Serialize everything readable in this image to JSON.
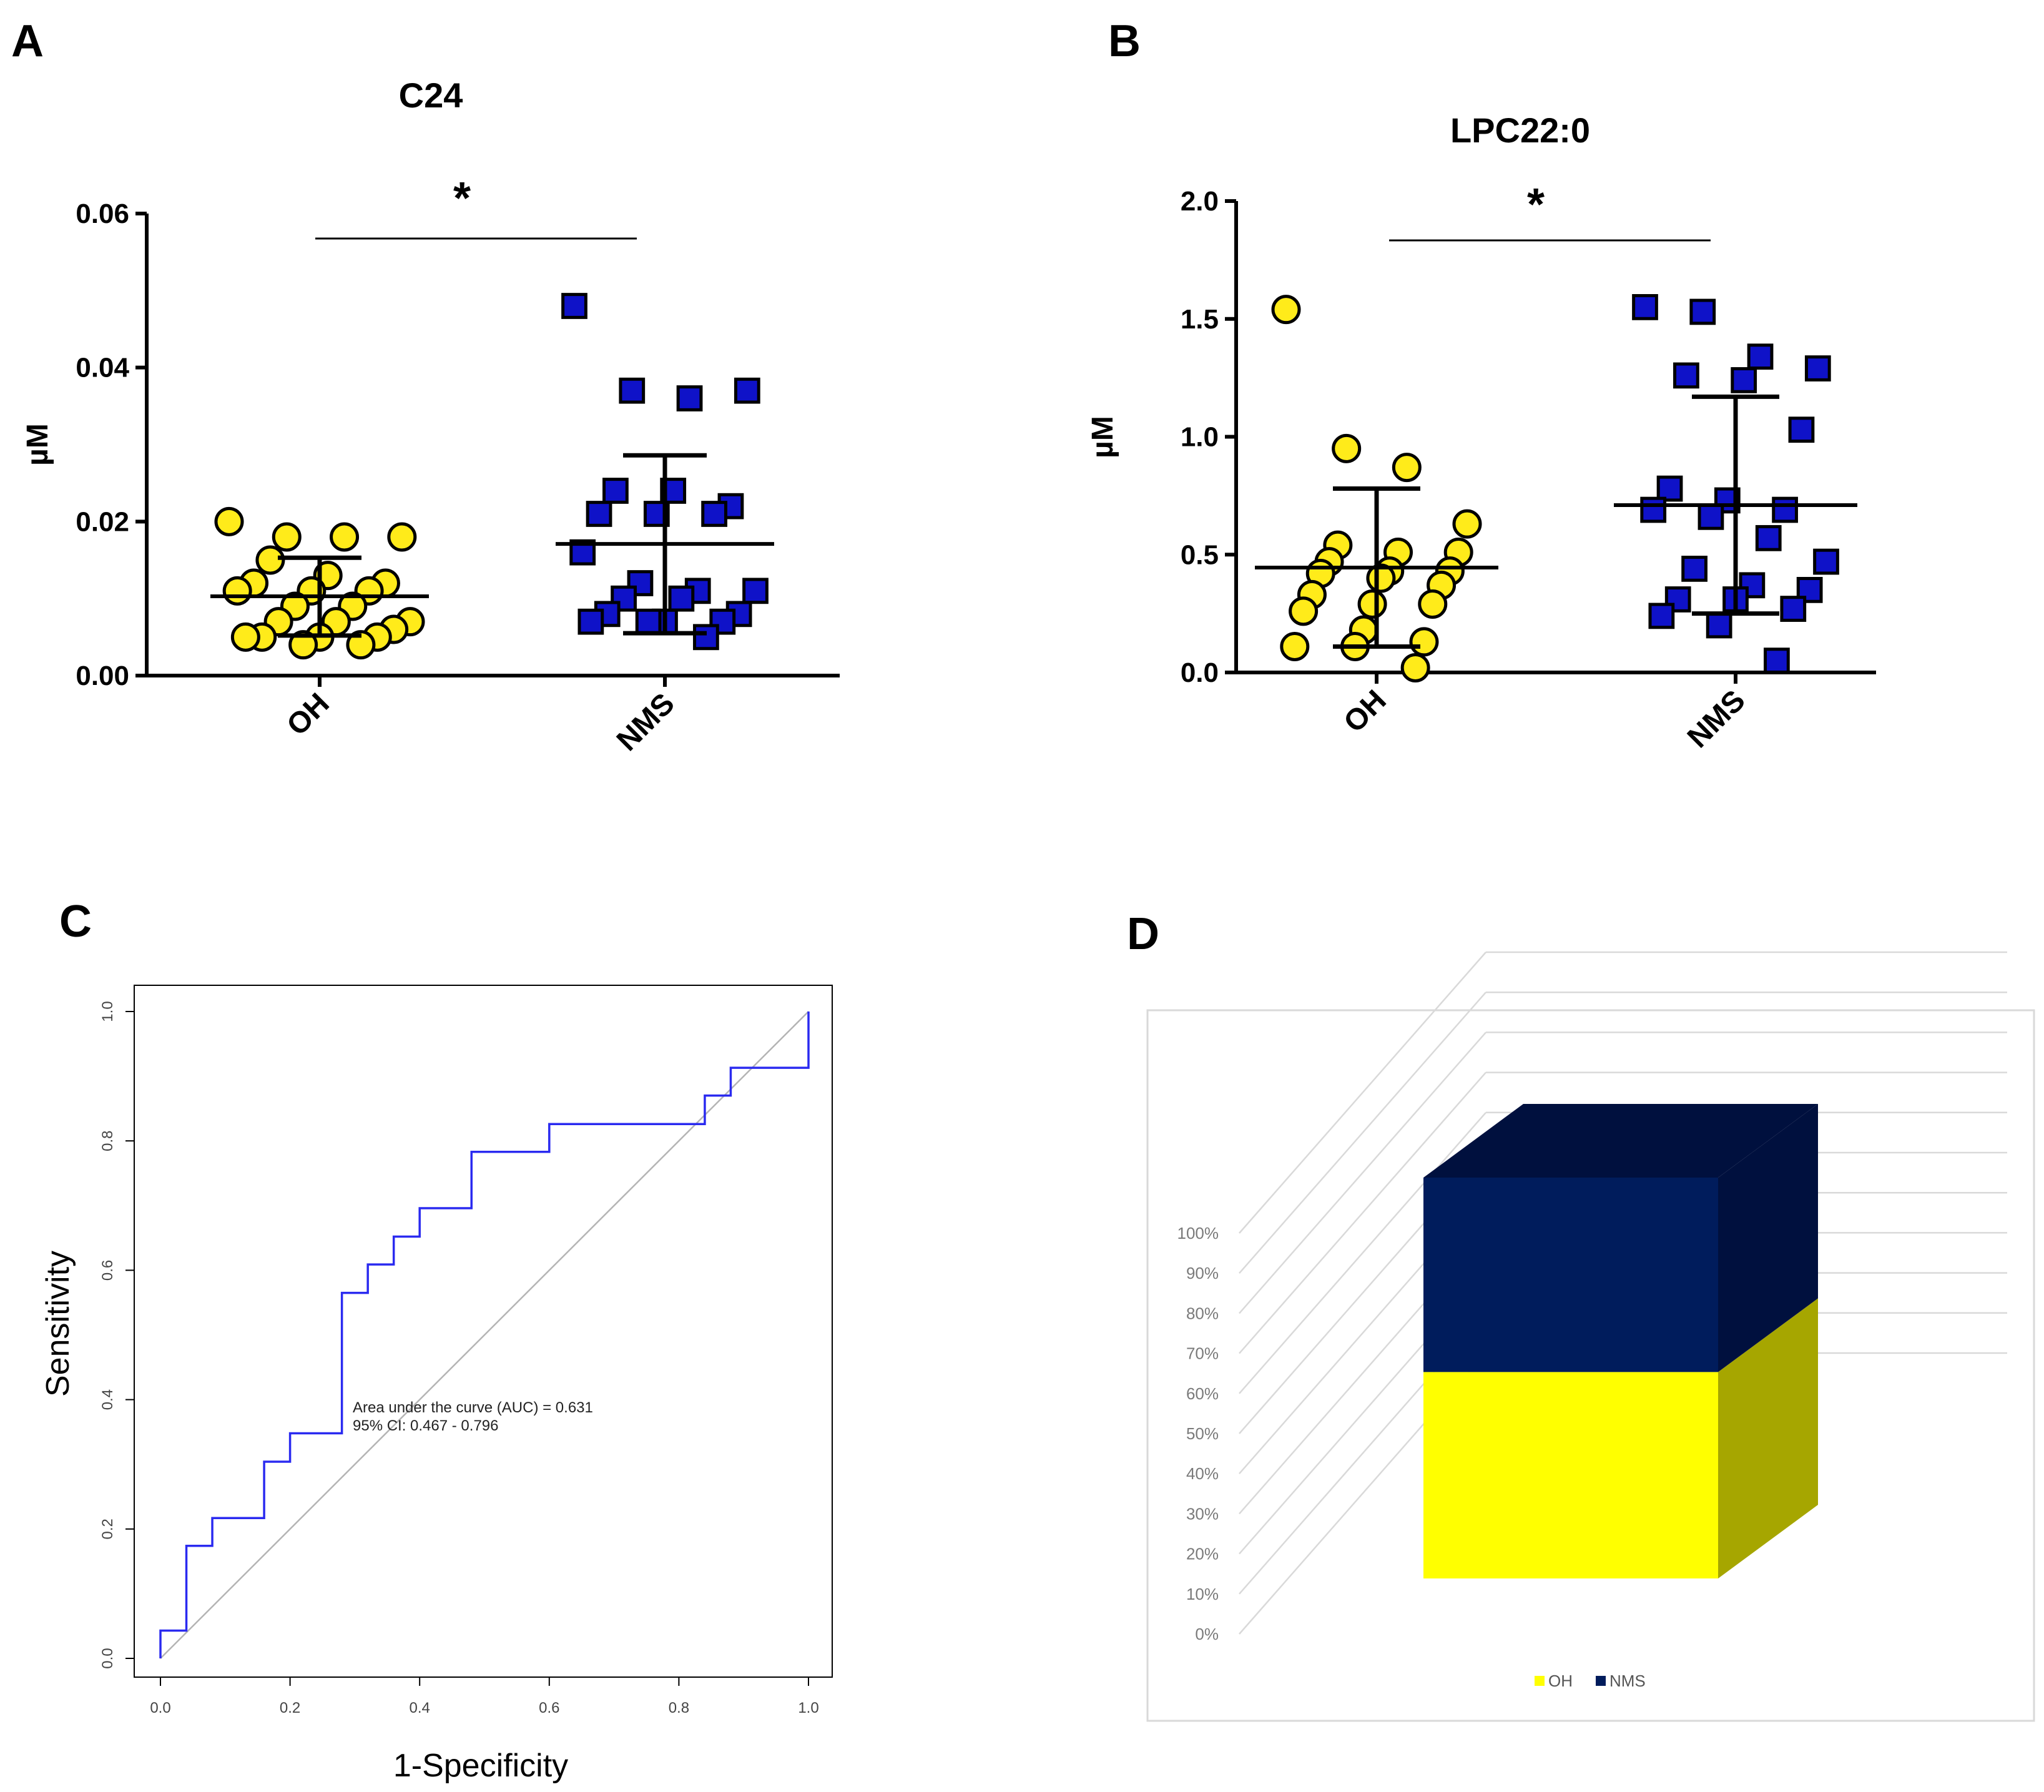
{
  "panels": [
    {
      "letter": "A",
      "title": "C24",
      "significance": "*",
      "ylabel": "µM",
      "yticks": [
        "0.06",
        "0.04",
        "0.02",
        "0.00"
      ],
      "categories": [
        "OH",
        "NMS"
      ]
    },
    {
      "letter": "B",
      "title": "LPC22:0",
      "significance": "*",
      "ylabel": "µM",
      "yticks": [
        "2.0",
        "1.5",
        "1.0",
        "0.5",
        "0.0"
      ],
      "categories": [
        "OH",
        "NMS"
      ]
    },
    {
      "letter": "C",
      "xlabel": "1-Specificity",
      "ylabel": "Sensitivity",
      "xticks": [
        "0.0",
        "0.2",
        "0.4",
        "0.6",
        "0.8",
        "1.0"
      ],
      "yticks": [
        "0.0",
        "0.2",
        "0.4",
        "0.6",
        "0.8",
        "1.0"
      ],
      "annotation_line1": "Area under the curve (AUC) = 0.631",
      "annotation_line2": "95% CI: 0.467 - 0.796"
    },
    {
      "letter": "D",
      "yticks": [
        "100%",
        "90%",
        "80%",
        "70%",
        "60%",
        "50%",
        "40%",
        "30%",
        "20%",
        "10%",
        "0%"
      ],
      "legend": [
        "OH",
        "NMS"
      ]
    }
  ],
  "colors": {
    "oh_yellow": "#ffeb1a",
    "nms_blue": "#0f12c8",
    "roc_line": "#2a2af0",
    "bar_yellow": "#ffff00",
    "bar_yellow_side": "#a6a600",
    "bar_navy": "#001c5c",
    "bar_navy_side": "#00103e"
  },
  "chart_data": [
    {
      "type": "scatter",
      "title": "C24",
      "ylabel": "µM",
      "ylim": [
        0,
        0.06
      ],
      "categories": [
        "OH",
        "NMS"
      ],
      "series": [
        {
          "name": "OH",
          "values": [
            0.02,
            0.018,
            0.018,
            0.018,
            0.015,
            0.013,
            0.012,
            0.012,
            0.011,
            0.011,
            0.011,
            0.009,
            0.009,
            0.007,
            0.007,
            0.007,
            0.006,
            0.005,
            0.005,
            0.005,
            0.005,
            0.004,
            0.004
          ],
          "mean": 0.0103,
          "sd_low": 0.0052,
          "sd_high": 0.0153
        },
        {
          "name": "NMS",
          "values": [
            0.048,
            0.037,
            0.036,
            0.037,
            0.024,
            0.024,
            0.022,
            0.021,
            0.021,
            0.021,
            0.016,
            0.012,
            0.011,
            0.011,
            0.01,
            0.01,
            0.008,
            0.008,
            0.007,
            0.007,
            0.007,
            0.007,
            0.005
          ],
          "mean": 0.0171,
          "sd_low": 0.0055,
          "sd_high": 0.0286
        }
      ]
    },
    {
      "type": "scatter",
      "title": "LPC22:0",
      "ylabel": "µM",
      "ylim": [
        0,
        2.0
      ],
      "categories": [
        "OH",
        "NMS"
      ],
      "series": [
        {
          "name": "OH",
          "values": [
            1.54,
            0.95,
            0.87,
            0.63,
            0.54,
            0.51,
            0.51,
            0.47,
            0.43,
            0.43,
            0.42,
            0.4,
            0.37,
            0.33,
            0.29,
            0.29,
            0.26,
            0.18,
            0.13,
            0.11,
            0.11,
            0.02
          ],
          "mean": 0.445,
          "sd_low": 0.11,
          "sd_high": 0.78
        },
        {
          "name": "NMS",
          "values": [
            1.55,
            1.53,
            1.34,
            1.29,
            1.26,
            1.24,
            1.03,
            0.78,
            0.73,
            0.69,
            0.69,
            0.66,
            0.57,
            0.47,
            0.44,
            0.37,
            0.35,
            0.31,
            0.31,
            0.27,
            0.24,
            0.2,
            0.05
          ],
          "mean": 0.71,
          "sd_low": 0.25,
          "sd_high": 1.17
        }
      ]
    },
    {
      "type": "line",
      "title": "",
      "xlabel": "1-Specificity",
      "ylabel": "Sensitivity",
      "xlim": [
        0,
        1
      ],
      "ylim": [
        0,
        1
      ],
      "series": [
        {
          "x": [
            0.0,
            0.0,
            0.04,
            0.04,
            0.08,
            0.08,
            0.16,
            0.16,
            0.2,
            0.2,
            0.28,
            0.28,
            0.32,
            0.32,
            0.36,
            0.36,
            0.4,
            0.4,
            0.48,
            0.48,
            0.6,
            0.6,
            0.84,
            0.84,
            0.88,
            0.88,
            1.0,
            1.0
          ],
          "y": [
            0.0,
            0.043,
            0.043,
            0.174,
            0.174,
            0.217,
            0.217,
            0.304,
            0.304,
            0.348,
            0.348,
            0.565,
            0.565,
            0.609,
            0.609,
            0.652,
            0.652,
            0.696,
            0.696,
            0.783,
            0.783,
            0.826,
            0.826,
            0.87,
            0.87,
            0.913,
            0.913,
            1.0
          ]
        }
      ],
      "reference_line": [
        [
          0,
          0
        ],
        [
          1,
          1
        ]
      ],
      "annotation": [
        "Area under the curve (AUC) = 0.631",
        "95% CI: 0.467 - 0.796"
      ]
    },
    {
      "type": "bar",
      "title": "",
      "stacked": true,
      "percent": true,
      "three_d": true,
      "ylim": [
        0,
        100
      ],
      "categories": [
        ""
      ],
      "series": [
        {
          "name": "OH",
          "values": [
            50
          ]
        },
        {
          "name": "NMS",
          "values": [
            50
          ]
        }
      ],
      "legend_position": "bottom"
    }
  ]
}
